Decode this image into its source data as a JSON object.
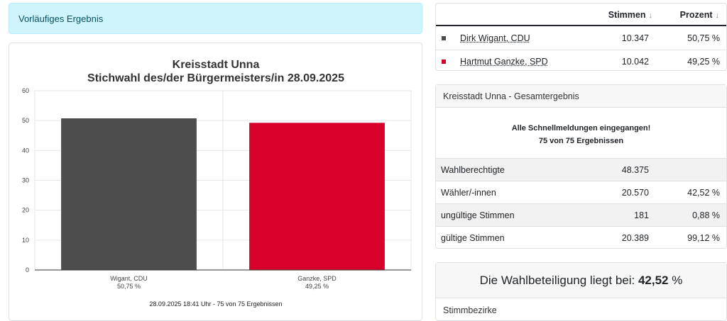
{
  "status": {
    "label": "Vorläufiges Ergebnis"
  },
  "chart_data": {
    "type": "bar",
    "title": "Kreisstadt Unna",
    "subtitle": "Stichwahl des/der Bürgermeisters/in 28.09.2025",
    "categories": [
      "Wigant, CDU",
      "Ganzke, SPD"
    ],
    "category_pcts": [
      "50,75 %",
      "49,25 %"
    ],
    "values": [
      50.75,
      49.25
    ],
    "colors": [
      "#4d4d4d",
      "#d6002a"
    ],
    "ylim": [
      0,
      60
    ],
    "yticks": [
      0,
      10,
      20,
      30,
      40,
      50,
      60
    ],
    "grid": true,
    "footer": "28.09.2025 18:41 Uhr - 75 von 75 Ergebnissen"
  },
  "results": {
    "headers": {
      "votes": "Stimmen",
      "percent": "Prozent",
      "sort_icon": "↓"
    },
    "rows": [
      {
        "name": "Dirk Wigant, CDU",
        "votes": "10.347",
        "percent": "50,75 %",
        "color": "#4d4d4d"
      },
      {
        "name": "Hartmut Ganzke, SPD",
        "votes": "10.042",
        "percent": "49,25 %",
        "color": "#d6002a"
      }
    ]
  },
  "summary": {
    "title": "Kreisstadt Unna - Gesamtergebnis",
    "message_line1": "Alle Schnellmeldungen eingegangen!",
    "message_line2": "75 von 75 Ergebnissen",
    "rows": [
      {
        "label": "Wahlberechtigte",
        "value": "48.375",
        "percent": ""
      },
      {
        "label": "Wähler/-innen",
        "value": "20.570",
        "percent": "42,52 %"
      },
      {
        "label": "ungültige Stimmen",
        "value": "181",
        "percent": "0,88 %"
      },
      {
        "label": "gültige Stimmen",
        "value": "20.389",
        "percent": "99,12 %"
      }
    ]
  },
  "turnout": {
    "prefix": "Die Wahlbeteiligung liegt bei:",
    "value": "42,52",
    "unit": "%",
    "section_label": "Stimmbezirke"
  }
}
